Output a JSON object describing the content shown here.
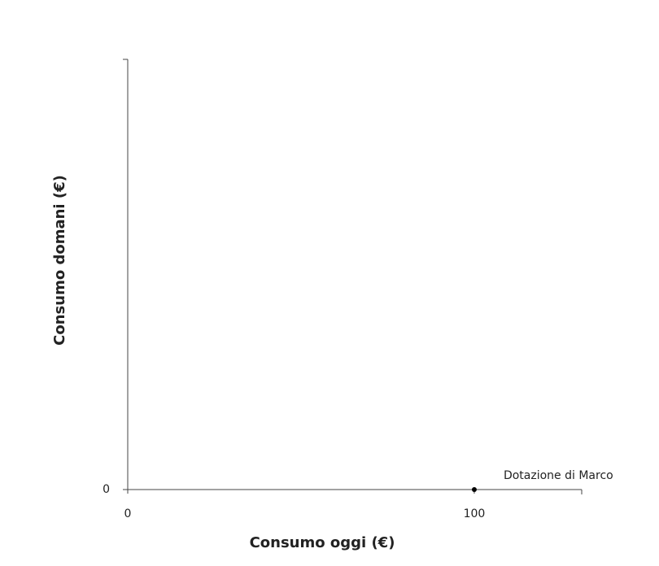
{
  "chart_data": {
    "type": "scatter",
    "x_label": "Consumo oggi (€)",
    "y_label": "Consumo domani (€)",
    "x": [
      100
    ],
    "values": [
      0
    ],
    "color": "#000000",
    "annotations": [
      {
        "text": "Dotazione di Marco",
        "x": 100,
        "y": 0
      }
    ],
    "xlim": [
      0,
      131
    ],
    "ylim": [
      0,
      124
    ],
    "xticks": [
      0,
      100
    ],
    "yticks": [
      0
    ],
    "grid": false
  }
}
